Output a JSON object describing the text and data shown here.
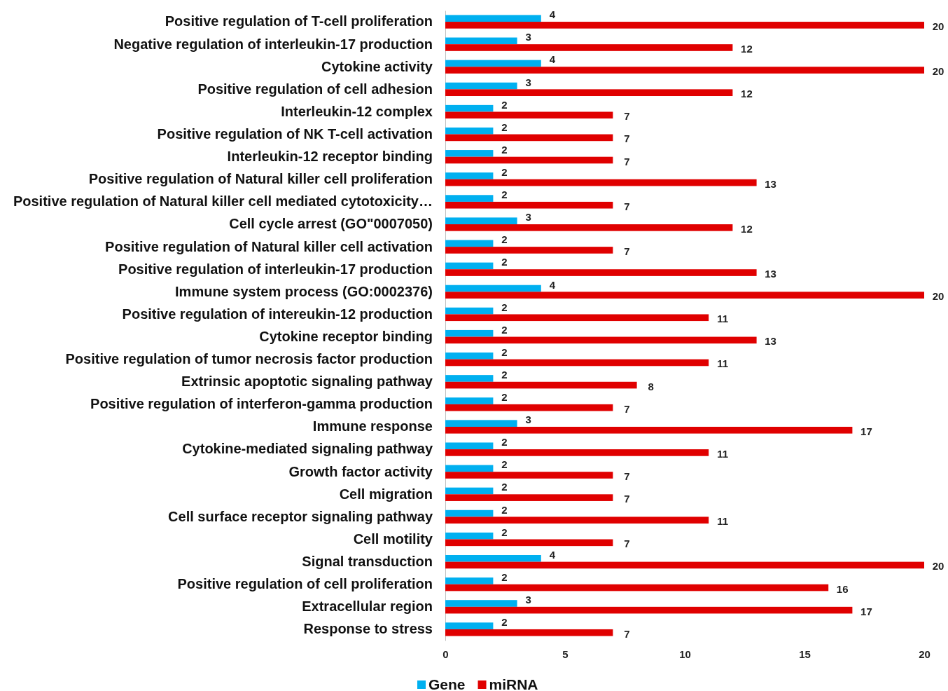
{
  "chart_data": {
    "type": "bar",
    "orientation": "horizontal",
    "categories": [
      "Positive regulation of T-cell proliferation",
      "Negative regulation of interleukin-17 production",
      "Cytokine activity",
      "Positive regulation of cell adhesion",
      "Interleukin-12 complex",
      "Positive regulation of NK T-cell activation",
      "Interleukin-12 receptor binding",
      "Positive regulation of Natural killer cell proliferation",
      "Positive regulation of Natural killer cell mediated cytotoxicity…",
      "Cell cycle arrest (GO\"0007050)",
      "Positive regulation of Natural killer cell activation",
      "Positive regulation of interleukin-17 production",
      "Immune system process (GO:0002376)",
      "Positive regulation of intereukin-12 production",
      "Cytokine receptor binding",
      "Positive regulation of tumor necrosis factor production",
      "Extrinsic apoptotic signaling pathway",
      "Positive regulation of interferon-gamma production",
      "Immune response",
      "Cytokine-mediated signaling pathway",
      "Growth factor activity",
      "Cell migration",
      "Cell surface receptor signaling pathway",
      "Cell motility",
      "Signal transduction",
      "Positive regulation of cell proliferation",
      "Extracellular region",
      "Response to stress"
    ],
    "series": [
      {
        "name": "Gene",
        "color": "#00b0f0",
        "values": [
          4,
          3,
          4,
          3,
          2,
          2,
          2,
          2,
          2,
          3,
          2,
          2,
          4,
          2,
          2,
          2,
          2,
          2,
          3,
          2,
          2,
          2,
          2,
          2,
          4,
          2,
          3,
          2
        ]
      },
      {
        "name": "miRNA",
        "color": "#e00000",
        "values": [
          20,
          12,
          20,
          12,
          7,
          7,
          7,
          13,
          7,
          12,
          7,
          13,
          20,
          11,
          13,
          11,
          8,
          7,
          17,
          11,
          7,
          7,
          11,
          7,
          20,
          16,
          17,
          7
        ]
      }
    ],
    "xlim": [
      0,
      20
    ],
    "xticks": [
      0,
      5,
      10,
      15,
      20
    ],
    "grid": false,
    "legend": "bottom",
    "data_labels": true
  }
}
